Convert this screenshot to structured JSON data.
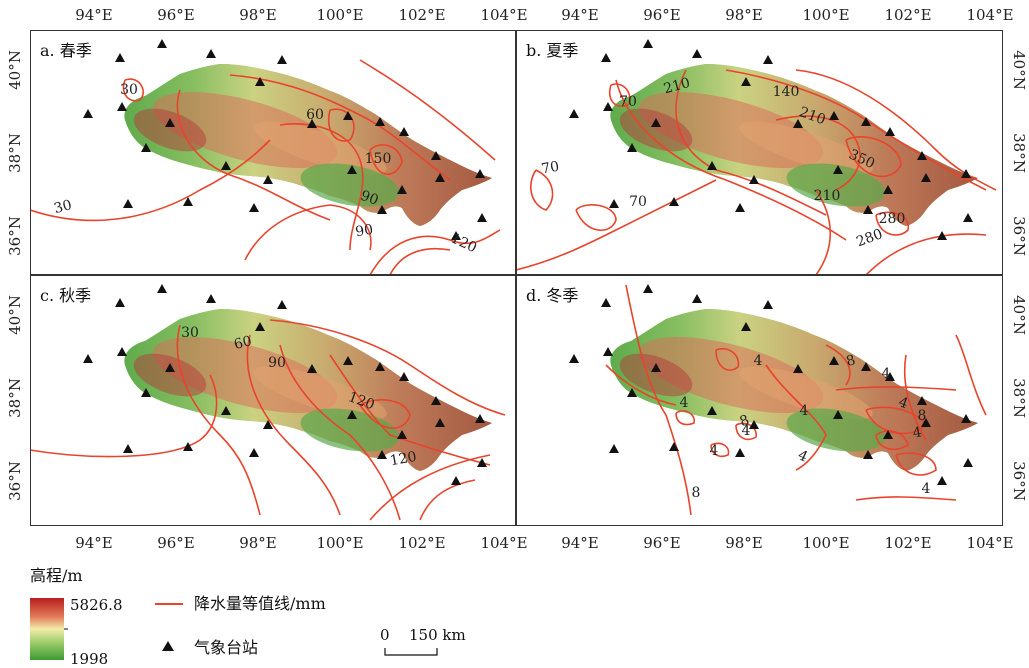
{
  "colors": {
    "isoline": "#e8442c",
    "station": "#111111",
    "elev_low": "#4fa63c",
    "elev_mid": "#f1eaa8",
    "elev_high": "#b81e1e"
  },
  "lon_labels": [
    "94°E",
    "96°E",
    "98°E",
    "100°E",
    "102°E",
    "104°E"
  ],
  "lat_labels": [
    "40°N",
    "38°N",
    "36°N"
  ],
  "panels": [
    {
      "id": "spring",
      "label": "a. 春季",
      "isoline_values": [
        "30",
        "30",
        "60",
        "90",
        "90",
        "150",
        "120"
      ]
    },
    {
      "id": "summer",
      "label": "b. 夏季",
      "isoline_values": [
        "70",
        "210",
        "140",
        "210",
        "70",
        "70",
        "350",
        "210",
        "280",
        "280"
      ]
    },
    {
      "id": "autumn",
      "label": "c. 秋季",
      "isoline_values": [
        "30",
        "60",
        "90",
        "120",
        "120"
      ]
    },
    {
      "id": "winter",
      "label": "d. 冬季",
      "isoline_values": [
        "4",
        "8",
        "4",
        "4",
        "4",
        "4",
        "4",
        "4",
        "4",
        "8",
        "4",
        "8",
        "8",
        "4"
      ]
    }
  ],
  "legend": {
    "elevation_title": "高程/m",
    "elev_max": "5826.8",
    "elev_min": "1998",
    "isoline_label": "降水量等值线/mm",
    "station_label": "气象台站",
    "scale_zero": "0",
    "scale_value": "150 km"
  }
}
